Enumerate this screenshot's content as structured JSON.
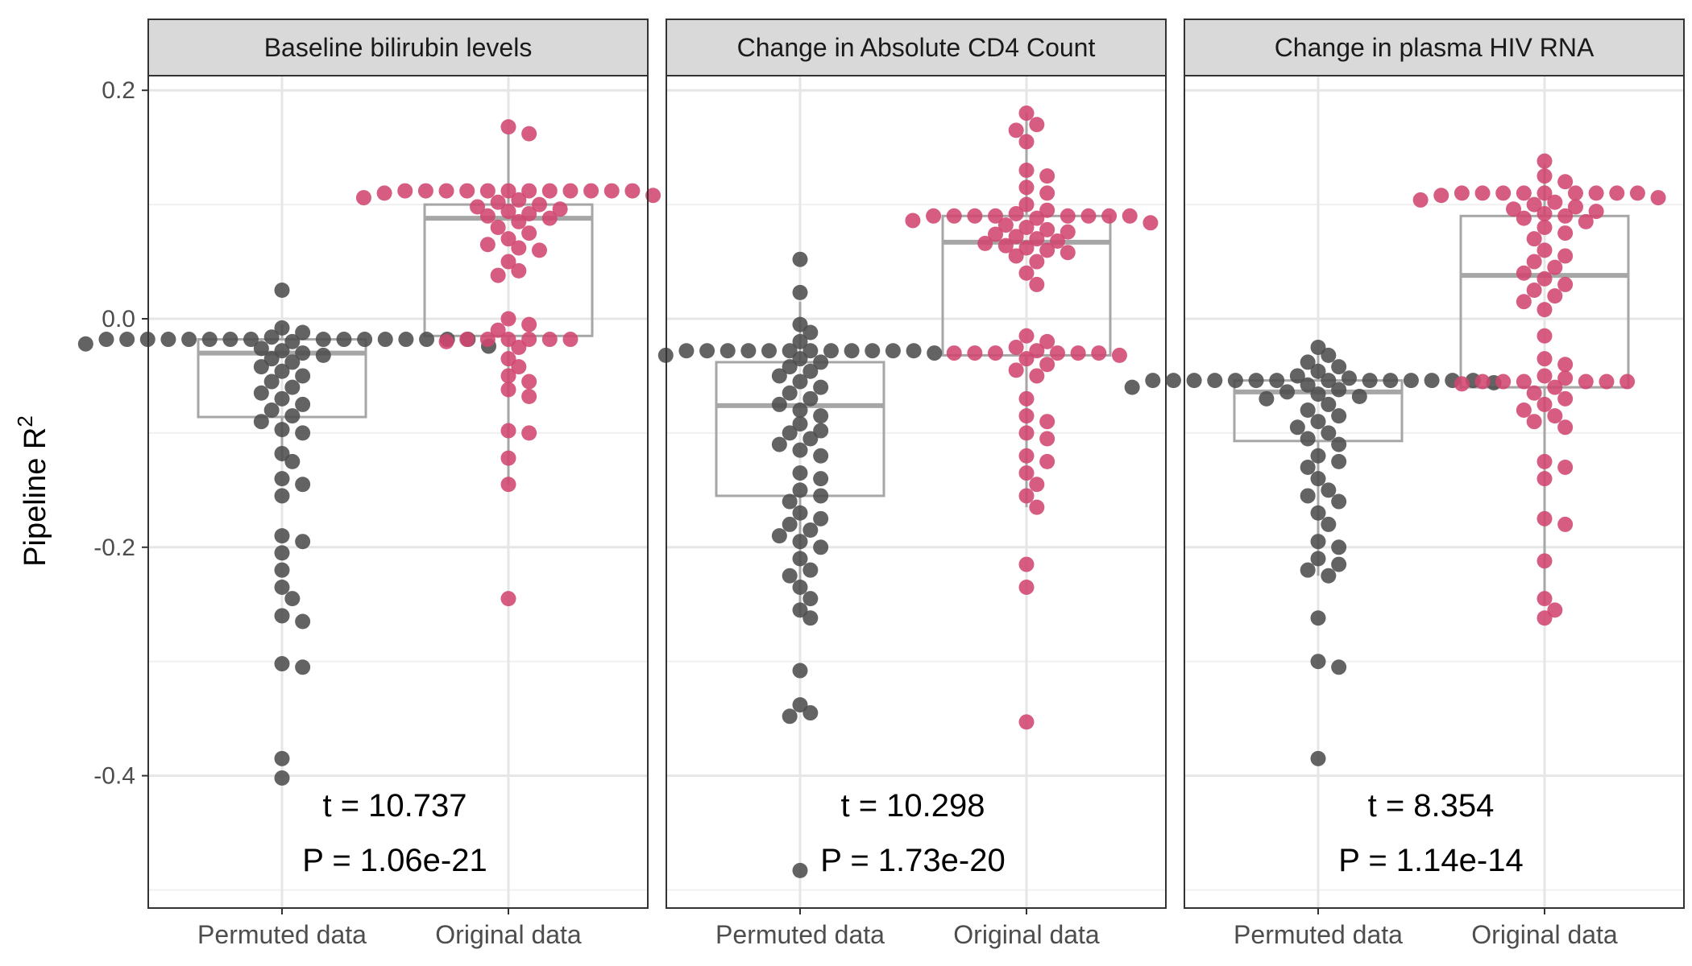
{
  "figure": {
    "ylabel_main": "Pipeline R",
    "ylabel_sup": "2"
  },
  "chart_data": {
    "type": "boxplot-with-points",
    "ylabel": "Pipeline R^2",
    "ylim": [
      -0.51,
      0.2
    ],
    "yticks": [
      0.2,
      0.0,
      -0.2,
      -0.4
    ],
    "ytick_labels": [
      "0.2",
      "0.0",
      "-0.2",
      "-0.4"
    ],
    "grid": true,
    "categories": [
      "Permuted data",
      "Original data"
    ],
    "colors": {
      "Permuted data": "#4d4d4d",
      "Original data": "#d1456f"
    },
    "panels": [
      {
        "title": "Baseline bilirubin levels",
        "stat_line1": "t = 10.737",
        "stat_line2": "P = 1.06e-21",
        "boxes": [
          {
            "name": "Permuted data",
            "q1": -0.086,
            "median": -0.03,
            "q3": -0.018,
            "whisker_low": -0.125,
            "whisker_high": -0.005
          },
          {
            "name": "Original data",
            "q1": -0.015,
            "median": 0.088,
            "q3": 0.1,
            "whisker_low": -0.145,
            "whisker_high": 0.162
          }
        ],
        "points": [
          {
            "name": "Permuted data",
            "values": [
              0.025,
              -0.008,
              -0.012,
              -0.016,
              -0.018,
              -0.018,
              -0.018,
              -0.018,
              -0.018,
              -0.018,
              -0.018,
              -0.018,
              -0.018,
              -0.018,
              -0.018,
              -0.018,
              -0.018,
              -0.018,
              -0.018,
              -0.018,
              -0.02,
              -0.022,
              -0.024,
              -0.026,
              -0.028,
              -0.03,
              -0.032,
              -0.035,
              -0.038,
              -0.042,
              -0.046,
              -0.05,
              -0.055,
              -0.06,
              -0.065,
              -0.07,
              -0.075,
              -0.08,
              -0.085,
              -0.09,
              -0.097,
              -0.1,
              -0.118,
              -0.125,
              -0.14,
              -0.145,
              -0.155,
              -0.19,
              -0.195,
              -0.205,
              -0.22,
              -0.235,
              -0.245,
              -0.26,
              -0.265,
              -0.302,
              -0.305,
              -0.385,
              -0.402
            ]
          },
          {
            "name": "Original data",
            "values": [
              0.168,
              0.162,
              0.112,
              0.112,
              0.112,
              0.112,
              0.112,
              0.112,
              0.112,
              0.112,
              0.112,
              0.112,
              0.112,
              0.112,
              0.11,
              0.108,
              0.106,
              0.104,
              0.102,
              0.1,
              0.098,
              0.096,
              0.094,
              0.092,
              0.09,
              0.088,
              0.085,
              0.08,
              0.075,
              0.07,
              0.065,
              0.062,
              0.06,
              0.05,
              0.042,
              0.038,
              0.0,
              -0.005,
              -0.01,
              -0.018,
              -0.018,
              -0.018,
              -0.018,
              -0.018,
              -0.018,
              -0.02,
              -0.025,
              -0.035,
              -0.042,
              -0.05,
              -0.055,
              -0.062,
              -0.068,
              -0.098,
              -0.1,
              -0.122,
              -0.145,
              -0.245
            ]
          }
        ]
      },
      {
        "title": "Change in Absolute CD4 Count",
        "stat_line1": "t = 10.298",
        "stat_line2": "P = 1.73e-20",
        "boxes": [
          {
            "name": "Permuted data",
            "q1": -0.155,
            "median": -0.076,
            "q3": -0.038,
            "whisker_low": -0.26,
            "whisker_high": 0.015
          },
          {
            "name": "Original data",
            "q1": -0.032,
            "median": 0.067,
            "q3": 0.09,
            "whisker_low": -0.165,
            "whisker_high": 0.18
          }
        ],
        "points": [
          {
            "name": "Permuted data",
            "values": [
              0.052,
              0.023,
              -0.005,
              -0.012,
              -0.02,
              -0.028,
              -0.028,
              -0.028,
              -0.028,
              -0.028,
              -0.028,
              -0.028,
              -0.028,
              -0.028,
              -0.028,
              -0.028,
              -0.028,
              -0.03,
              -0.032,
              -0.035,
              -0.038,
              -0.042,
              -0.046,
              -0.05,
              -0.055,
              -0.06,
              -0.065,
              -0.07,
              -0.075,
              -0.08,
              -0.085,
              -0.092,
              -0.098,
              -0.1,
              -0.105,
              -0.11,
              -0.115,
              -0.12,
              -0.135,
              -0.14,
              -0.15,
              -0.155,
              -0.16,
              -0.17,
              -0.175,
              -0.18,
              -0.185,
              -0.19,
              -0.195,
              -0.2,
              -0.21,
              -0.22,
              -0.225,
              -0.235,
              -0.245,
              -0.255,
              -0.262,
              -0.308,
              -0.338,
              -0.345,
              -0.348,
              -0.483
            ]
          },
          {
            "name": "Original data",
            "values": [
              0.18,
              0.17,
              0.165,
              0.155,
              0.13,
              0.125,
              0.115,
              0.11,
              0.1,
              0.095,
              0.092,
              0.09,
              0.09,
              0.09,
              0.09,
              0.09,
              0.09,
              0.09,
              0.09,
              0.088,
              0.086,
              0.084,
              0.082,
              0.08,
              0.078,
              0.076,
              0.074,
              0.072,
              0.07,
              0.068,
              0.066,
              0.064,
              0.062,
              0.06,
              0.058,
              0.055,
              0.05,
              0.04,
              0.03,
              -0.015,
              -0.02,
              -0.025,
              -0.028,
              -0.03,
              -0.03,
              -0.03,
              -0.03,
              -0.03,
              -0.03,
              -0.032,
              -0.035,
              -0.04,
              -0.045,
              -0.05,
              -0.07,
              -0.085,
              -0.09,
              -0.1,
              -0.105,
              -0.12,
              -0.125,
              -0.135,
              -0.145,
              -0.155,
              -0.165,
              -0.215,
              -0.235,
              -0.353
            ]
          }
        ]
      },
      {
        "title": "Change in plasma HIV RNA",
        "stat_line1": "t = 8.354",
        "stat_line2": "P = 1.14e-14",
        "boxes": [
          {
            "name": "Permuted data",
            "q1": -0.107,
            "median": -0.064,
            "q3": -0.054,
            "whisker_low": -0.225,
            "whisker_high": -0.03
          },
          {
            "name": "Original data",
            "q1": -0.06,
            "median": 0.038,
            "q3": 0.09,
            "whisker_low": -0.25,
            "whisker_high": 0.135
          }
        ],
        "points": [
          {
            "name": "Permuted data",
            "values": [
              -0.025,
              -0.032,
              -0.038,
              -0.042,
              -0.046,
              -0.05,
              -0.052,
              -0.054,
              -0.054,
              -0.054,
              -0.054,
              -0.054,
              -0.054,
              -0.054,
              -0.054,
              -0.054,
              -0.054,
              -0.054,
              -0.054,
              -0.054,
              -0.054,
              -0.056,
              -0.058,
              -0.06,
              -0.062,
              -0.064,
              -0.066,
              -0.068,
              -0.07,
              -0.075,
              -0.08,
              -0.085,
              -0.09,
              -0.095,
              -0.1,
              -0.105,
              -0.11,
              -0.12,
              -0.125,
              -0.13,
              -0.14,
              -0.15,
              -0.155,
              -0.16,
              -0.17,
              -0.18,
              -0.195,
              -0.2,
              -0.21,
              -0.215,
              -0.22,
              -0.225,
              -0.262,
              -0.3,
              -0.305,
              -0.385
            ]
          },
          {
            "name": "Original data",
            "values": [
              0.138,
              0.125,
              0.12,
              0.11,
              0.11,
              0.11,
              0.11,
              0.11,
              0.11,
              0.11,
              0.11,
              0.11,
              0.108,
              0.106,
              0.104,
              0.102,
              0.1,
              0.098,
              0.096,
              0.094,
              0.092,
              0.09,
              0.088,
              0.085,
              0.08,
              0.075,
              0.07,
              0.06,
              0.055,
              0.05,
              0.045,
              0.04,
              0.035,
              0.03,
              0.025,
              0.02,
              0.015,
              0.008,
              -0.015,
              -0.035,
              -0.04,
              -0.05,
              -0.052,
              -0.055,
              -0.055,
              -0.055,
              -0.055,
              -0.055,
              -0.055,
              -0.057,
              -0.06,
              -0.065,
              -0.07,
              -0.075,
              -0.08,
              -0.085,
              -0.09,
              -0.095,
              -0.125,
              -0.13,
              -0.14,
              -0.175,
              -0.18,
              -0.212,
              -0.245,
              -0.255,
              -0.262
            ]
          }
        ]
      }
    ]
  }
}
